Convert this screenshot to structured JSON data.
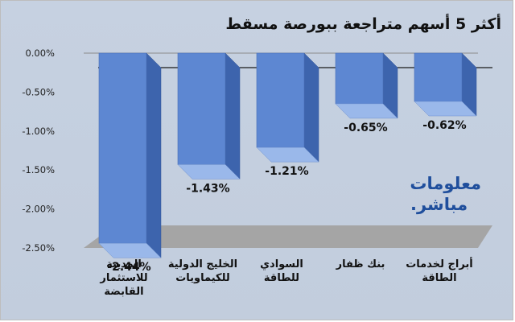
{
  "chart_data": {
    "type": "bar",
    "title": "أكثر 5 أسهم متراجعة ببورصة مسقط",
    "categories": [
      "المدينة للاستثمار القابضة",
      "الخليج الدولية للكيماويات",
      "السوادي للطاقة",
      "بنك ظفار",
      "أبراج لخدمات الطاقة"
    ],
    "values": [
      -2.44,
      -1.43,
      -1.21,
      -0.65,
      -0.62
    ],
    "data_labels": [
      "-2.44%",
      "-1.43%",
      "-1.21%",
      "-0.65%",
      "-0.62%"
    ],
    "y_ticks": [
      "0.00%",
      "-0.50%",
      "-1.00%",
      "-1.50%",
      "-2.00%",
      "-2.50%"
    ],
    "ylim": [
      -2.5,
      0
    ],
    "xlabel": "",
    "ylabel": "",
    "grid": false,
    "legend": "none",
    "colors": {
      "bar_front": "#5d87d2",
      "bar_side": "#3d64ad",
      "bar_top": "#9ab8ea",
      "background": "#c4cfdf",
      "floor": "#a5a5a5",
      "axis": "#1a1a1a"
    }
  },
  "logo": {
    "line1": "معلومات",
    "line2": "مباشر."
  }
}
